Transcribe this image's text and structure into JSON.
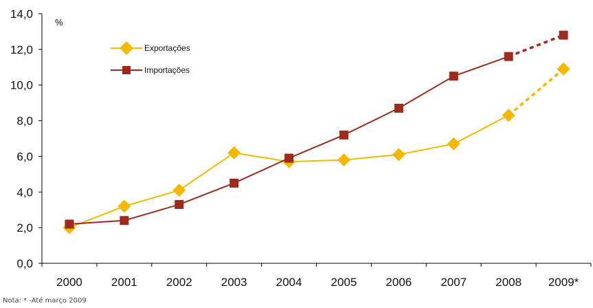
{
  "chart_data": {
    "type": "line",
    "categories": [
      "2000",
      "2001",
      "2002",
      "2003",
      "2004",
      "2005",
      "2006",
      "2007",
      "2008",
      "2009*"
    ],
    "series": [
      {
        "name": "Exportações",
        "values": [
          2.0,
          3.2,
          4.1,
          6.2,
          5.7,
          5.8,
          6.1,
          6.7,
          8.3,
          10.9
        ],
        "color": "#f5b800",
        "marker": "diamond",
        "dashed_last_segment": true
      },
      {
        "name": "Importações",
        "values": [
          2.2,
          2.4,
          3.3,
          4.5,
          5.9,
          7.2,
          8.7,
          10.5,
          11.6,
          12.8
        ],
        "color": "#9b2b1e",
        "marker": "square",
        "dashed_last_segment": true
      }
    ],
    "y_unit": "%",
    "ylim": [
      0,
      14
    ],
    "yticks": [
      "0,0",
      "2,0",
      "4,0",
      "6,0",
      "8,0",
      "10,0",
      "12,0",
      "14,0"
    ],
    "grid": false,
    "legend_position": "top-left",
    "note": "Nota: * -Até março 2009"
  }
}
